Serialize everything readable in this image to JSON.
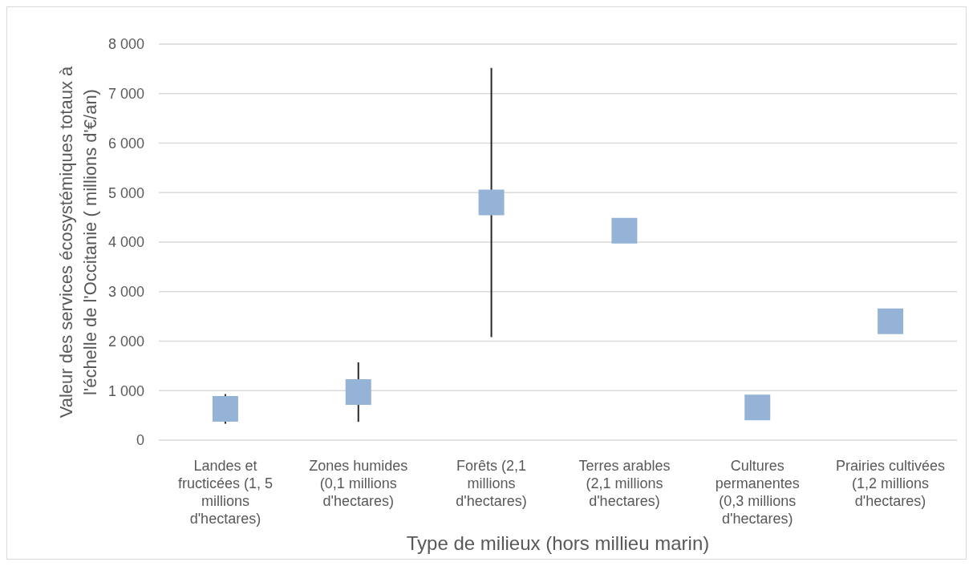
{
  "chart_data": {
    "type": "scatter",
    "xlabel": "Type de milieux (hors millieu marin)",
    "ylabel": "Valeur des services écosystémiques totaux à l'échelle de l'Occitanie ( millions d'€/an)",
    "categories": [
      "Landes et fructicées (1, 5 millions d'hectares)",
      "Zones humides (0,1 millions d'hectares)",
      "Forêts (2,1 millions d'hectares)",
      "Terres arables (2,1 millions d'hectares)",
      "Cultures permanentes (0,3 millions d'hectares)",
      "Prairies cultivées (1,2 millions d'hectares)"
    ],
    "values": [
      630,
      970,
      4800,
      4230,
      660,
      2400
    ],
    "errors": [
      300,
      600,
      2720,
      null,
      null,
      null
    ],
    "color": "#95b3d7",
    "marker": "square",
    "ylim": [
      0,
      8000
    ],
    "yticks": [
      0,
      {
        "value": 1000,
        "label": "1 000"
      },
      {
        "value": 2000,
        "label": "2 000"
      },
      {
        "value": 3000,
        "label": "3 000"
      },
      {
        "value": 4000,
        "label": "4 000"
      },
      {
        "value": 5000,
        "label": "5 000"
      },
      {
        "value": 6000,
        "label": "6 000"
      },
      {
        "value": 7000,
        "label": "7 000"
      },
      {
        "value": 8000,
        "label": "8 000"
      }
    ],
    "grid": "y"
  }
}
